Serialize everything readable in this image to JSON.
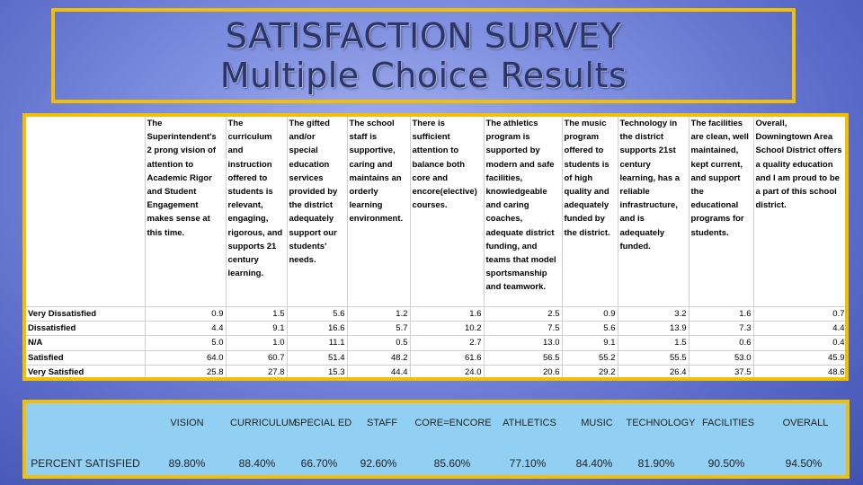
{
  "title": {
    "line1": "SATISFACTION SURVEY",
    "line2": "Multiple Choice Results"
  },
  "results": {
    "questions": [
      "The Superintendent's 2 prong vision of attention to Academic Rigor and Student Engagement makes sense at this time.",
      "The curriculum and instruction offered to students is relevant, engaging, rigorous, and supports 21 century learning.",
      "The gifted and/or special education services provided by the district adequately support our students' needs.",
      "The school staff is supportive, caring and maintains an orderly learning environment.",
      "There is sufficient attention to balance both core and encore(elective) courses.",
      "The athletics program is supported by modern and safe facilities, knowledgeable and caring coaches, adequate district funding, and teams that model sportsmanship and teamwork.",
      "The music program offered to students is of high quality and adequately funded by the district.",
      "Technology in the district supports 21st century learning, has a reliable infrastructure, and is adequately funded.",
      "The facilities are clean, well maintained, kept current, and support the educational programs for students.",
      "Overall, Downingtown Area School District offers a quality education and I am proud to be a part of this school district."
    ],
    "rows": [
      {
        "label": "Very Dissatisfied",
        "values": [
          "0.9",
          "1.5",
          "5.6",
          "1.2",
          "1.6",
          "2.5",
          "0.9",
          "3.2",
          "1.6",
          "0.7"
        ]
      },
      {
        "label": "Dissatisfied",
        "values": [
          "4.4",
          "9.1",
          "16.6",
          "5.7",
          "10.2",
          "7.5",
          "5.6",
          "13.9",
          "7.3",
          "4.4"
        ]
      },
      {
        "label": "N/A",
        "values": [
          "5.0",
          "1.0",
          "11.1",
          "0.5",
          "2.7",
          "13.0",
          "9.1",
          "1.5",
          "0.6",
          "0.4"
        ]
      },
      {
        "label": "Satisfied",
        "values": [
          "64.0",
          "60.7",
          "51.4",
          "48.2",
          "61.6",
          "56.5",
          "55.2",
          "55.5",
          "53.0",
          "45.9"
        ]
      },
      {
        "label": "Very Satisfied",
        "values": [
          "25.8",
          "27.8",
          "15.3",
          "44.4",
          "24.0",
          "20.6",
          "29.2",
          "26.4",
          "37.5",
          "48.6"
        ]
      }
    ]
  },
  "summary": {
    "headers": [
      "VISION",
      "CURRICULUM",
      "SPECIAL ED",
      "STAFF",
      "CORE=ENCORE",
      "ATHLETICS",
      "MUSIC",
      "TECHNOLOGY",
      "FACILITIES",
      "OVERALL"
    ],
    "row_label": "PERCENT SATISFIED",
    "values": [
      "89.80%",
      "88.40%",
      "66.70%",
      "92.60%",
      "85.60%",
      "77.10%",
      "84.40%",
      "81.90%",
      "90.50%",
      "94.50%"
    ]
  },
  "colors": {
    "border": "#f2c000",
    "summary_bg": "#92d0f3",
    "title_text": "#2d3566"
  }
}
